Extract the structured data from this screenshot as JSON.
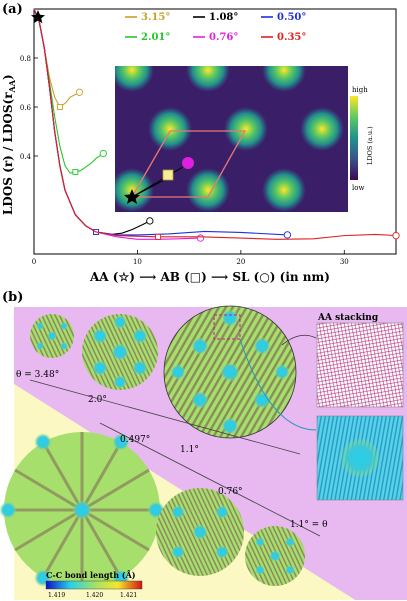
{
  "panel_a": {
    "label": "(a)",
    "ylabel": "LDOS (r) / LDOS(r",
    "ylabel_sub": "AA",
    "ylabel_close": ")",
    "xlabel": "AA (☆) ⟶ AB (□) ⟶ SL (○) (in nm)",
    "legend": [
      {
        "label": "3.15°",
        "color": "#c8a02a"
      },
      {
        "label": "1.08°",
        "color": "#000000"
      },
      {
        "label": "0.50°",
        "color": "#1f2fe0"
      },
      {
        "label": "2.01°",
        "color": "#27c62a"
      },
      {
        "label": "0.76°",
        "color": "#e01fe0"
      },
      {
        "label": "0.35°",
        "color": "#e02020"
      }
    ],
    "inset": {
      "colorbar_high": "high",
      "colorbar_low": "low",
      "colorbar_label": "LDOS (a.u.)"
    }
  },
  "chart_data": {
    "type": "line",
    "xlabel": "AA (☆) ⟶ AB (□) ⟶ SL (○) (in nm)",
    "ylabel": "LDOS (r) / LDOS(rAA)",
    "xlim": [
      0,
      35
    ],
    "ylim": [
      0,
      1
    ],
    "xticks": [
      0,
      10,
      20,
      30
    ],
    "yticks": [
      0.4,
      0.6,
      0.8
    ],
    "series": [
      {
        "name": "3.15°",
        "color": "#c8a02a",
        "x": [
          0,
          0.5,
          1,
          1.5,
          2,
          2.5,
          3,
          3.5,
          4.4
        ],
        "y": [
          1.0,
          0.95,
          0.84,
          0.72,
          0.64,
          0.6,
          0.615,
          0.64,
          0.66
        ]
      },
      {
        "name": "2.01°",
        "color": "#27c62a",
        "x": [
          0,
          0.5,
          1,
          1.5,
          2,
          2.5,
          3,
          3.5,
          4,
          4.5,
          5,
          5.5,
          6,
          6.7
        ],
        "y": [
          1.0,
          0.95,
          0.84,
          0.7,
          0.56,
          0.44,
          0.36,
          0.33,
          0.335,
          0.34,
          0.355,
          0.37,
          0.39,
          0.41
        ]
      },
      {
        "name": "1.08°",
        "color": "#000000",
        "x": [
          0,
          0.5,
          1,
          1.5,
          2,
          2.5,
          3,
          4,
          5,
          6,
          7.5,
          8.5,
          9.5,
          10.5,
          11.2
        ],
        "y": [
          1.0,
          0.95,
          0.84,
          0.68,
          0.5,
          0.36,
          0.26,
          0.16,
          0.115,
          0.09,
          0.08,
          0.085,
          0.1,
          0.12,
          0.135
        ]
      },
      {
        "name": "0.76°",
        "color": "#e01fe0",
        "x": [
          0,
          0.5,
          1,
          1.5,
          2,
          2.5,
          3,
          4,
          5,
          6,
          8,
          10,
          12,
          14,
          16.1
        ],
        "y": [
          1.0,
          0.95,
          0.84,
          0.68,
          0.5,
          0.36,
          0.26,
          0.16,
          0.115,
          0.09,
          0.07,
          0.06,
          0.06,
          0.062,
          0.065
        ]
      },
      {
        "name": "0.50°",
        "color": "#1f2fe0",
        "x": [
          0,
          0.5,
          1,
          1.5,
          2,
          2.5,
          3,
          4,
          5,
          6,
          8,
          10,
          13,
          16.5,
          20,
          24.5
        ],
        "y": [
          1.0,
          0.95,
          0.84,
          0.68,
          0.5,
          0.36,
          0.26,
          0.16,
          0.115,
          0.09,
          0.078,
          0.078,
          0.082,
          0.092,
          0.088,
          0.078
        ]
      },
      {
        "name": "0.35°",
        "color": "#e02020",
        "x": [
          0,
          0.5,
          1,
          1.5,
          2,
          2.5,
          3,
          4,
          5,
          6,
          8,
          12,
          16,
          20,
          23.5,
          27,
          30,
          33,
          35
        ],
        "y": [
          1.0,
          0.95,
          0.84,
          0.68,
          0.5,
          0.36,
          0.26,
          0.16,
          0.115,
          0.09,
          0.075,
          0.07,
          0.07,
          0.065,
          0.06,
          0.062,
          0.075,
          0.08,
          0.075
        ]
      }
    ]
  },
  "panel_b": {
    "label": "(b)",
    "angles": {
      "theta_348": "θ = 3.48°",
      "a20": "2.0°",
      "a11": "1.1°",
      "a0497": "0.497°",
      "a076": "0.76°",
      "theta_11": "1.1° = θ"
    },
    "aa_stacking": "AA stacking",
    "bond_colorbar": {
      "title": "C-C bond length (Å)",
      "ticks": [
        "1.419",
        "1.420",
        "1.421"
      ]
    },
    "colors": {
      "violet_region": "#e7b9f0",
      "yellow_region": "#fbf8c3",
      "circle_fill": "#9fe06a",
      "spot": "#2bd6e6"
    }
  }
}
